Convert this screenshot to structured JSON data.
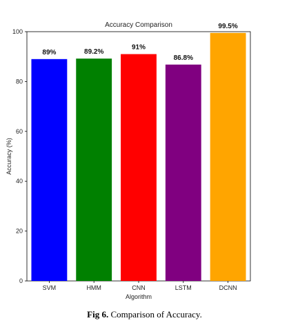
{
  "chart_data": {
    "type": "bar",
    "title": "Accuracy Comparison",
    "xlabel": "Algorithm",
    "ylabel": "Accuracy (%)",
    "categories": [
      "SVM",
      "HMM",
      "CNN",
      "LSTM",
      "DCNN"
    ],
    "values": [
      89,
      89.2,
      91,
      86.8,
      99.5
    ],
    "data_labels": [
      "89%",
      "89.2%",
      "91%",
      "86.8%",
      "99.5%"
    ],
    "colors": [
      "#0000ff",
      "#008000",
      "#ff0000",
      "#800080",
      "#ffa500"
    ],
    "ylim": [
      0,
      100
    ],
    "yticks": [
      0,
      20,
      40,
      60,
      80,
      100
    ],
    "grid": false
  },
  "caption": {
    "label": "Fig 6.",
    "text": " Comparison of Accuracy."
  }
}
